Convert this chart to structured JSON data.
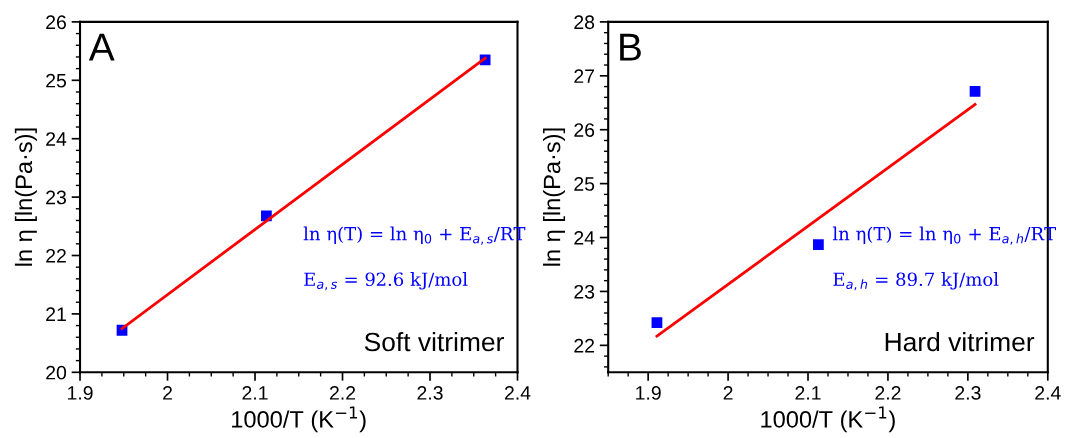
{
  "chart_data": [
    {
      "type": "scatter",
      "title": "A",
      "xlabel": "1000/T (K$^{−1}$)",
      "ylabel": "ln η [ln(Pa·s)]",
      "xlim": [
        1.9,
        2.4
      ],
      "xticks": [
        1.9,
        2,
        2.1,
        2.2,
        2.3,
        2.4
      ],
      "ylim": [
        20,
        26
      ],
      "yticks": [
        20,
        21,
        22,
        23,
        24,
        25,
        26
      ],
      "grid": false,
      "legend": false,
      "series": [
        {
          "color": "#0000ff",
          "marker": "square",
          "x": [
            1.948,
            2.113,
            2.363
          ],
          "values": [
            20.72,
            22.68,
            25.35
          ]
        },
        {
          "type": "line",
          "color": "#ff0000",
          "marker": "none",
          "line_style": "solid",
          "x": [
            1.948,
            2.363
          ],
          "values": [
            20.75,
            25.38
          ]
        }
      ],
      "annotations": [
        "ln η(T) = ln η$_{0}$ + E$_{a,s}$/RT",
        "E$_{a,s}$ = 92.6 kJ/mol",
        "Soft vitrimer"
      ]
    },
    {
      "type": "scatter",
      "title": "B",
      "xlabel": "1000/T (K$^{−1}$)",
      "ylabel": "ln η [ln(Pa·s)]",
      "xlim": [
        1.85,
        2.4
      ],
      "xticks": [
        1.9,
        2,
        2.1,
        2.2,
        2.3,
        2.4
      ],
      "ylim": [
        21.5,
        28
      ],
      "yticks": [
        22,
        23,
        24,
        25,
        26,
        27,
        28
      ],
      "grid": false,
      "legend": false,
      "series": [
        {
          "color": "#0000ff",
          "marker": "square",
          "x": [
            1.911,
            2.113,
            2.309
          ],
          "values": [
            22.42,
            23.87,
            26.71
          ]
        },
        {
          "type": "line",
          "color": "#ff0000",
          "marker": "none",
          "line_style": "solid",
          "x": [
            1.911,
            2.309
          ],
          "values": [
            22.17,
            26.47
          ]
        }
      ],
      "annotations": [
        "ln η(T) = ln η$_{0}$ + E$_{a,h}$/RT",
        "E$_{a,h}$ = 89.7 kJ/mol",
        "Hard vitrimer"
      ]
    }
  ]
}
